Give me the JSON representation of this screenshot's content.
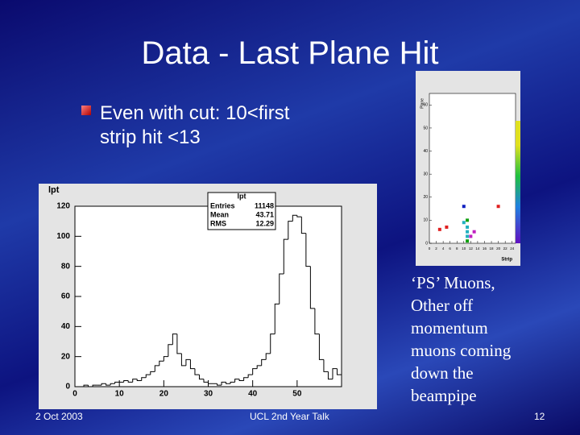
{
  "slide": {
    "title": "Data - Last Plane Hit",
    "bullet_lines": [
      "Even with cut: 10<first",
      "strip hit <13"
    ],
    "side_text_lines": [
      "‘PS’ Muons,",
      "Other off",
      "momentum",
      "muons coming",
      "down the",
      "beampipe"
    ],
    "footer": {
      "date": "2 Oct 2003",
      "center": "UCL 2nd Year Talk",
      "page": "12"
    }
  },
  "chart_data": [
    {
      "type": "histogram",
      "title": "lpt",
      "color": "#000000",
      "bins": [
        0,
        1,
        2,
        3,
        4,
        5,
        6,
        7,
        8,
        9,
        10,
        11,
        12,
        13,
        14,
        15,
        16,
        17,
        18,
        19,
        20,
        21,
        22,
        23,
        24,
        25,
        26,
        27,
        28,
        29,
        30,
        31,
        32,
        33,
        34,
        35,
        36,
        37,
        38,
        39,
        40,
        41,
        42,
        43,
        44,
        45,
        46,
        47,
        48,
        49,
        50,
        51,
        52,
        53,
        54,
        55,
        56,
        57,
        58,
        59,
        60
      ],
      "values": [
        0,
        0,
        1,
        0,
        1,
        1,
        2,
        1,
        2,
        3,
        3,
        4,
        3,
        5,
        4,
        6,
        8,
        10,
        14,
        17,
        20,
        28,
        35,
        22,
        14,
        18,
        12,
        8,
        5,
        3,
        2,
        2,
        1,
        3,
        2,
        3,
        5,
        4,
        6,
        8,
        12,
        14,
        18,
        22,
        35,
        55,
        75,
        98,
        110,
        114,
        113,
        102,
        80,
        52,
        35,
        18,
        10,
        5,
        12,
        8
      ],
      "xlim": [
        0,
        60
      ],
      "ylim": [
        0,
        120
      ],
      "xticks": [
        0,
        10,
        20,
        30,
        40,
        50
      ],
      "yticks": [
        0,
        20,
        40,
        60,
        80,
        100,
        120
      ],
      "stats": {
        "title": "lpt",
        "rows": [
          {
            "label": "Entries",
            "value": 11148
          },
          {
            "label": "Mean",
            "value": 43.71
          },
          {
            "label": "RMS",
            "value": 12.29
          }
        ]
      }
    },
    {
      "type": "scatter",
      "x_label": "Strip",
      "y_label": "Plane",
      "xlim": [
        0,
        25
      ],
      "ylim": [
        0,
        65
      ],
      "xticks": [
        0,
        2,
        4,
        6,
        8,
        10,
        12,
        14,
        16,
        18,
        20,
        22,
        24
      ],
      "yticks": [
        0,
        10,
        20,
        30,
        40,
        50,
        60
      ],
      "series": [
        {
          "color": "#1020c0",
          "x": [
            10
          ],
          "values": [
            16
          ]
        },
        {
          "color": "#e02020",
          "x": [
            20,
            5,
            3
          ],
          "values": [
            16,
            7,
            6
          ]
        },
        {
          "color": "#20b0c0",
          "x": [
            10,
            11,
            11,
            11
          ],
          "values": [
            9,
            7,
            5,
            3
          ]
        },
        {
          "color": "#10a010",
          "x": [
            11,
            11
          ],
          "values": [
            10,
            1
          ]
        },
        {
          "color": "#c020c0",
          "x": [
            13,
            12
          ],
          "values": [
            5,
            3
          ]
        }
      ]
    }
  ]
}
